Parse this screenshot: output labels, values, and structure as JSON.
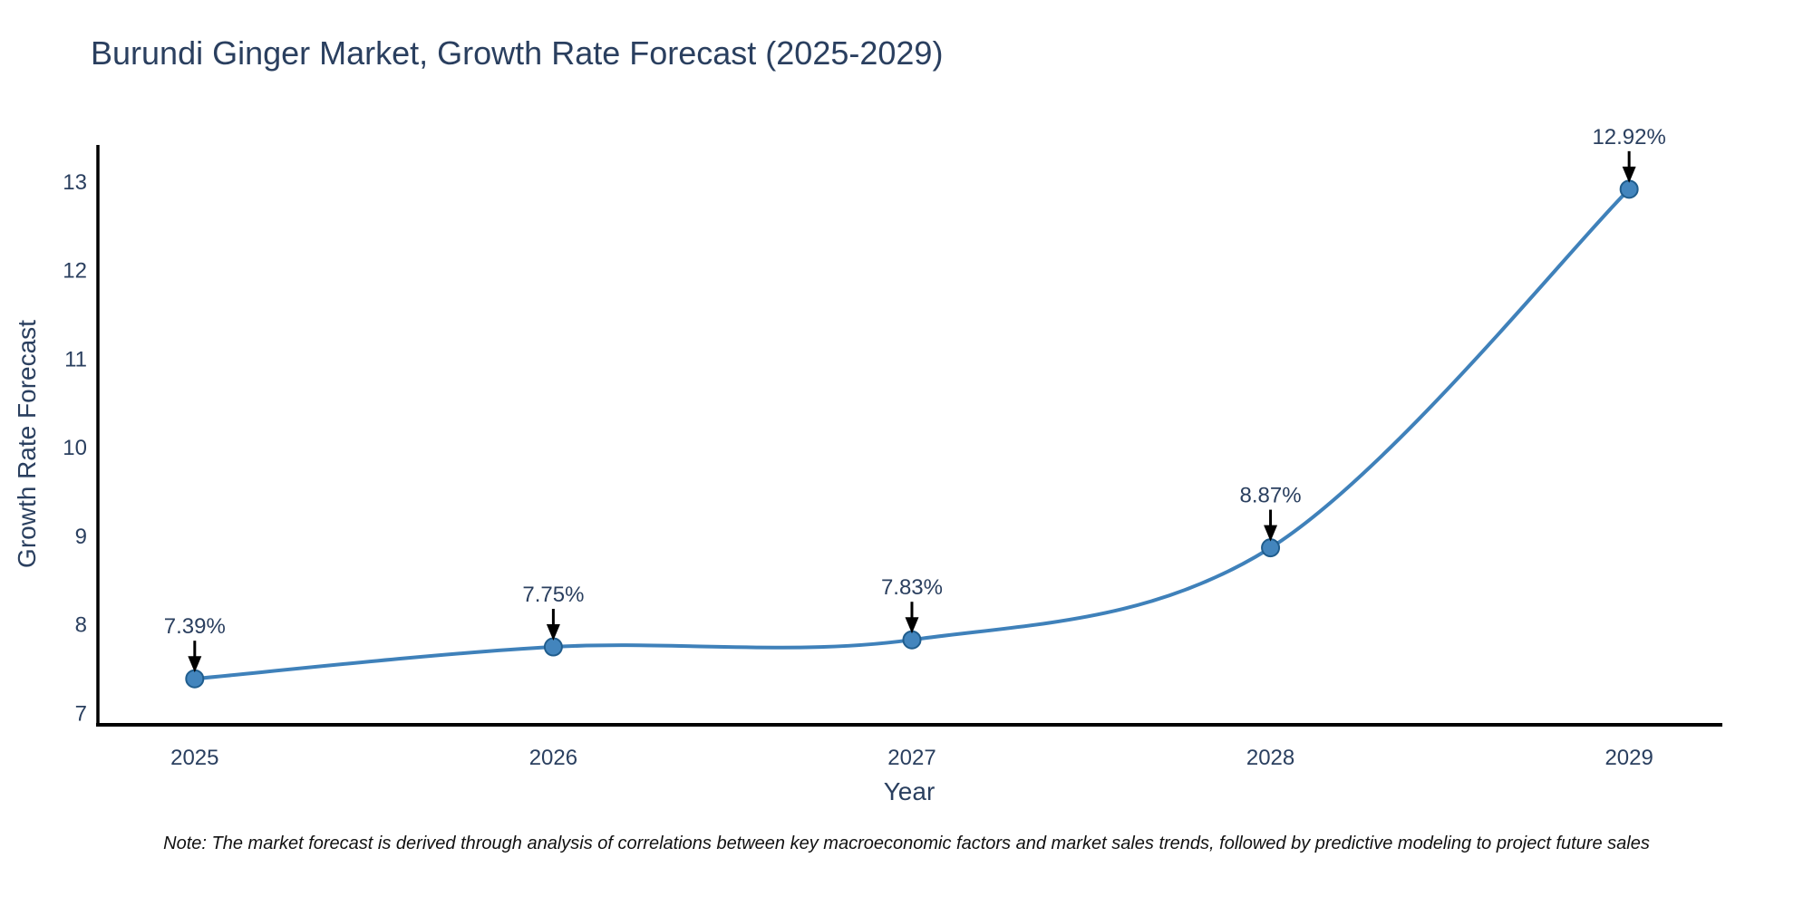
{
  "figure": {
    "title": "Burundi Ginger Market, Growth Rate Forecast (2025-2029)",
    "note": "Note: The market forecast is derived through analysis of correlations between key macroeconomic factors and market sales trends, followed by predictive modeling to project future sales",
    "colors": {
      "background": "#ffffff",
      "title_text": "#2a3f5f",
      "axis_text": "#2a3f5f",
      "axis_line": "#000000",
      "series_line": "#3f81ba",
      "marker_fill": "#4385bd",
      "marker_edge": "#205d8d",
      "annotation_arrow": "#000000",
      "annotation_text": "#2a3f5f"
    }
  },
  "chart_data": {
    "type": "line",
    "title": "Burundi Ginger Market, Growth Rate Forecast (2025-2029)",
    "xlabel": "Year",
    "ylabel": "Growth Rate Forecast",
    "x": [
      2025,
      2026,
      2027,
      2028,
      2029
    ],
    "series": [
      {
        "name": "Growth Rate Forecast",
        "values": [
          7.39,
          7.75,
          7.83,
          8.87,
          12.92
        ]
      }
    ],
    "point_labels": [
      "7.39%",
      "7.75%",
      "7.83%",
      "8.87%",
      "12.92%"
    ],
    "xticks": [
      "2025",
      "2026",
      "2027",
      "2028",
      "2029"
    ],
    "yticks": [
      7,
      8,
      9,
      10,
      11,
      12,
      13
    ],
    "xlim": [
      2024.73,
      2029.26
    ],
    "ylim": [
      6.87,
      13.42
    ],
    "line_shape": "spline",
    "grid": false,
    "legend": "none"
  }
}
